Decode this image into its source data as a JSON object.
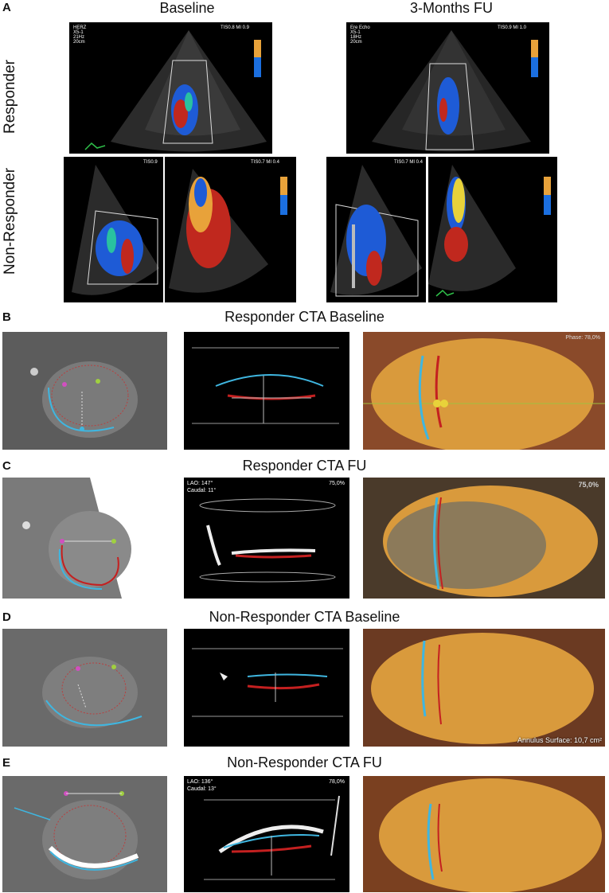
{
  "panelA": {
    "letter": "A",
    "col_titles": [
      "Baseline",
      "3-Months FU"
    ],
    "row_labels": [
      "Responder",
      "Non-Responder"
    ],
    "echo_overlays": {
      "r_base": {
        "top_left": "HERZ\nX5-1\n21Hz\n20cm",
        "top_right": "TIS0.8   MI 0.9"
      },
      "r_fu": {
        "top_left": "Ere Echo\nX5-1\n18Hz\n20cm",
        "top_right": "TIS0.9   MI 1.0"
      },
      "nr_base_a": {
        "top_right": "TIS0.9"
      },
      "nr_base_b": {
        "top_right": "TIS0.7   MI 0.4"
      },
      "nr_fu_a": {
        "top_right": "TIS0.7   MI 0.4"
      }
    }
  },
  "panelB": {
    "letter": "B",
    "title": "Responder CTA Baseline",
    "phase_label": "Phase: 78,0%"
  },
  "panelC": {
    "letter": "C",
    "title": "Responder CTA FU",
    "lao": "LAO: 147°",
    "caudal": "Caudal: 11°",
    "phase_mid": "75,0%",
    "phase_right": "75,0%"
  },
  "panelD": {
    "letter": "D",
    "title": "Non-Responder CTA Baseline",
    "annulus": "Annulus Surface: 10,7 cm²"
  },
  "panelE": {
    "letter": "E",
    "title": "Non-Responder CTA FU",
    "lao": "LAO: 136°",
    "caudal": "Caudal: 13°",
    "phase_mid": "78,0%"
  },
  "colors": {
    "doppler_blue": "#1e5bd6",
    "doppler_red": "#c0281e",
    "ct_orange": "#d99a3c",
    "annulus_blue": "#3fb6e0",
    "annulus_red": "#c42020"
  }
}
